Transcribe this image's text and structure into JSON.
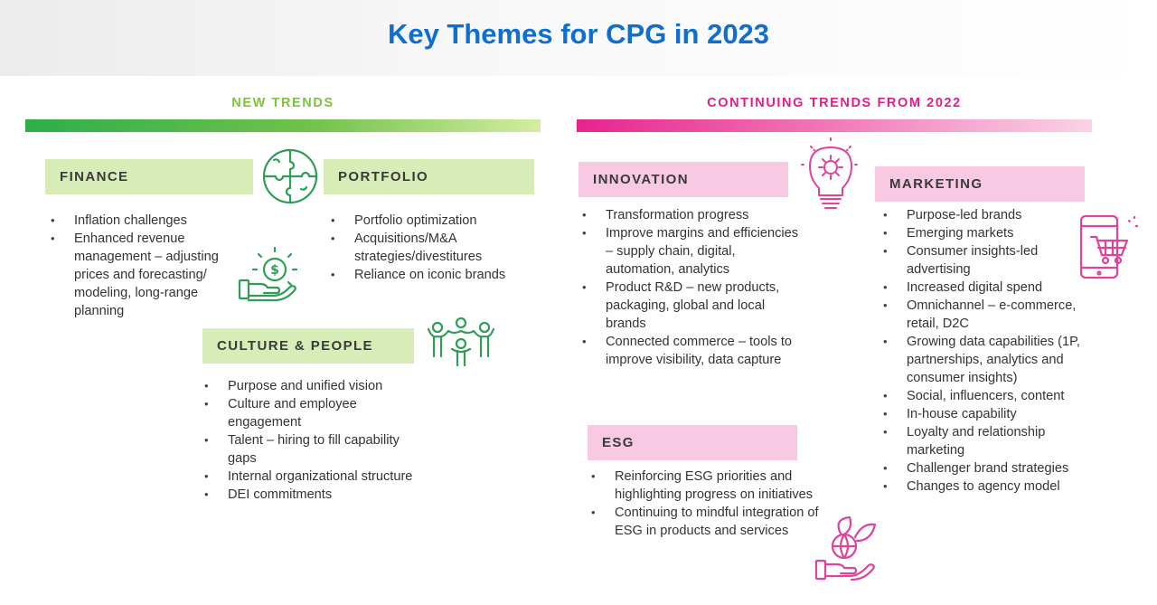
{
  "title": "Key Themes for CPG in 2023",
  "new_trends": {
    "heading": "NEW TRENDS",
    "finance": {
      "label": "FINANCE",
      "items": [
        "Inflation challenges",
        "Enhanced revenue management – adjusting prices and forecasting/ modeling, long-range planning"
      ]
    },
    "portfolio": {
      "label": "PORTFOLIO",
      "items": [
        "Portfolio optimization",
        "Acquisitions/M&A strategies/divestitures",
        "Reliance on iconic brands"
      ]
    },
    "culture": {
      "label": "CULTURE & PEOPLE",
      "items": [
        "Purpose and unified vision",
        "Culture and employee engagement",
        "Talent – hiring to fill capability gaps",
        "Internal organizational structure",
        "DEI commitments"
      ]
    }
  },
  "continuing_trends": {
    "heading": "CONTINUING TRENDS FROM 2022",
    "innovation": {
      "label": "INNOVATION",
      "items": [
        "Transformation progress",
        "Improve margins and efficiencies – supply chain, digital, automation, analytics",
        "Product R&D – new products, packaging, global and local brands",
        "Connected commerce – tools to improve visibility, data capture"
      ]
    },
    "esg": {
      "label": "ESG",
      "items": [
        "Reinforcing ESG priorities and highlighting progress on initiatives",
        "Continuing to mindful integration of ESG in products and services"
      ]
    },
    "marketing": {
      "label": "MARKETING",
      "items": [
        "Purpose-led brands",
        "Emerging markets",
        "Consumer insights-led advertising",
        "Increased digital spend",
        "Omnichannel – e-commerce, retail, D2C",
        "Growing data capabilities (1P, partnerships, analytics and consumer insights)",
        "Social, influencers, content",
        "In-house capability",
        "Loyalty and relationship marketing",
        "Challenger brand strategies",
        "Changes to agency model"
      ]
    }
  },
  "icons": {
    "puzzle": "puzzle-globe-icon",
    "money": "money-hand-icon",
    "people": "people-group-icon",
    "bulb": "lightbulb-gear-icon",
    "cart": "mobile-cart-icon",
    "leaf": "globe-leaf-hand-icon"
  },
  "colors": {
    "title": "#0e6fd1",
    "green_heading": "#7dc242",
    "pink_heading": "#e31c8a",
    "green_icon": "#2e9e57",
    "pink_icon": "#e0439b",
    "green_box": "#d7ecb6",
    "pink_box": "#f7c9e3"
  }
}
